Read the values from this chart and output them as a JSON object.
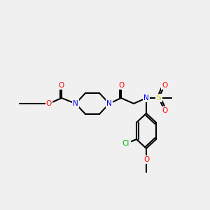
{
  "background_color": "#f0f0f0",
  "bond_color": "#000000",
  "bond_lw": 1.5,
  "atom_colors": {
    "N": "#0000ff",
    "O": "#ff0000",
    "S": "#cccc00",
    "Cl": "#00bb00",
    "C": "#000000"
  },
  "font_size": 7.5,
  "font_size_small": 6.5
}
